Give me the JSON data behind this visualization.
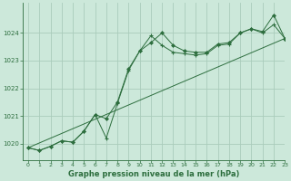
{
  "title": "Graphe pression niveau de la mer (hPa)",
  "background_color": "#cce8da",
  "grid_color": "#aaccbb",
  "line_color": "#2d6e3e",
  "marker_color": "#2d6e3e",
  "xlim": [
    -0.5,
    23
  ],
  "ylim": [
    1019.4,
    1025.1
  ],
  "yticks": [
    1020,
    1021,
    1022,
    1023,
    1024
  ],
  "xticks": [
    0,
    1,
    2,
    3,
    4,
    5,
    6,
    7,
    8,
    9,
    10,
    11,
    12,
    13,
    14,
    15,
    16,
    17,
    18,
    19,
    20,
    21,
    22,
    23
  ],
  "series1_x": [
    0,
    1,
    2,
    3,
    4,
    5,
    6,
    7,
    8,
    9,
    10,
    11,
    12,
    13,
    14,
    15,
    16,
    17,
    18,
    19,
    20,
    21,
    22,
    23
  ],
  "series1_y": [
    1019.85,
    1019.75,
    1019.9,
    1020.1,
    1020.05,
    1020.45,
    1021.05,
    1020.2,
    1021.45,
    1022.65,
    1023.35,
    1023.9,
    1023.55,
    1023.3,
    1023.25,
    1023.2,
    1023.25,
    1023.55,
    1023.6,
    1024.0,
    1024.15,
    1024.0,
    1024.3,
    1023.8
  ],
  "series2_x": [
    0,
    1,
    2,
    3,
    4,
    5,
    6,
    7,
    8,
    9,
    10,
    11,
    12,
    13,
    14,
    15,
    16,
    17,
    18,
    19,
    20,
    21,
    22,
    23
  ],
  "series2_y": [
    1019.85,
    1019.75,
    1019.9,
    1020.1,
    1020.05,
    1020.45,
    1021.05,
    1020.9,
    1021.5,
    1022.7,
    1023.35,
    1023.65,
    1024.0,
    1023.55,
    1023.35,
    1023.3,
    1023.3,
    1023.6,
    1023.65,
    1024.0,
    1024.15,
    1024.05,
    1024.65,
    1023.8
  ],
  "series3_x": [
    0,
    23
  ],
  "series3_y": [
    1019.85,
    1023.8
  ]
}
